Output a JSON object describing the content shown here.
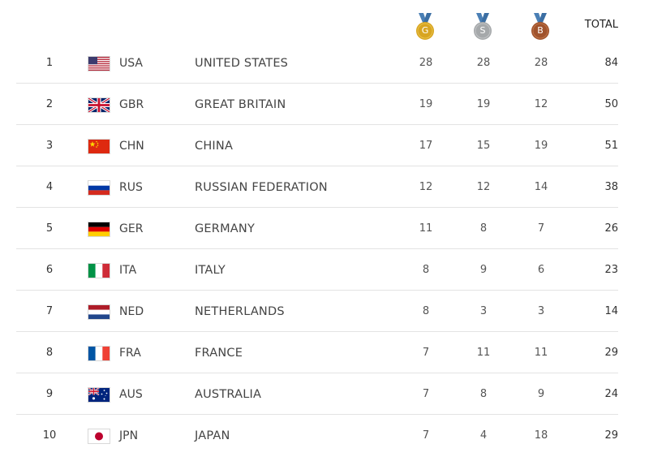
{
  "header": {
    "gold_letter": "G",
    "silver_letter": "S",
    "bronze_letter": "B",
    "total_label": "TOTAL"
  },
  "colors": {
    "gold": "#d8a521",
    "silver": "#a5a8aa",
    "bronze": "#a0532d",
    "ribbon": "#4a7fb5",
    "divider": "#e3e3e3"
  },
  "rows": [
    {
      "rank": "1",
      "flag": "usa-flag-icon",
      "code": "USA",
      "country": "UNITED STATES",
      "gold": "28",
      "silver": "28",
      "bronze": "28",
      "total": "84"
    },
    {
      "rank": "2",
      "flag": "gbr-flag-icon",
      "code": "GBR",
      "country": "GREAT BRITAIN",
      "gold": "19",
      "silver": "19",
      "bronze": "12",
      "total": "50"
    },
    {
      "rank": "3",
      "flag": "chn-flag-icon",
      "code": "CHN",
      "country": "CHINA",
      "gold": "17",
      "silver": "15",
      "bronze": "19",
      "total": "51"
    },
    {
      "rank": "4",
      "flag": "rus-flag-icon",
      "code": "RUS",
      "country": "RUSSIAN FEDERATION",
      "gold": "12",
      "silver": "12",
      "bronze": "14",
      "total": "38"
    },
    {
      "rank": "5",
      "flag": "ger-flag-icon",
      "code": "GER",
      "country": "GERMANY",
      "gold": "11",
      "silver": "8",
      "bronze": "7",
      "total": "26"
    },
    {
      "rank": "6",
      "flag": "ita-flag-icon",
      "code": "ITA",
      "country": "ITALY",
      "gold": "8",
      "silver": "9",
      "bronze": "6",
      "total": "23"
    },
    {
      "rank": "7",
      "flag": "ned-flag-icon",
      "code": "NED",
      "country": "NETHERLANDS",
      "gold": "8",
      "silver": "3",
      "bronze": "3",
      "total": "14"
    },
    {
      "rank": "8",
      "flag": "fra-flag-icon",
      "code": "FRA",
      "country": "FRANCE",
      "gold": "7",
      "silver": "11",
      "bronze": "11",
      "total": "29"
    },
    {
      "rank": "9",
      "flag": "aus-flag-icon",
      "code": "AUS",
      "country": "AUSTRALIA",
      "gold": "7",
      "silver": "8",
      "bronze": "9",
      "total": "24"
    },
    {
      "rank": "10",
      "flag": "jpn-flag-icon",
      "code": "JPN",
      "country": "JAPAN",
      "gold": "7",
      "silver": "4",
      "bronze": "18",
      "total": "29"
    }
  ]
}
